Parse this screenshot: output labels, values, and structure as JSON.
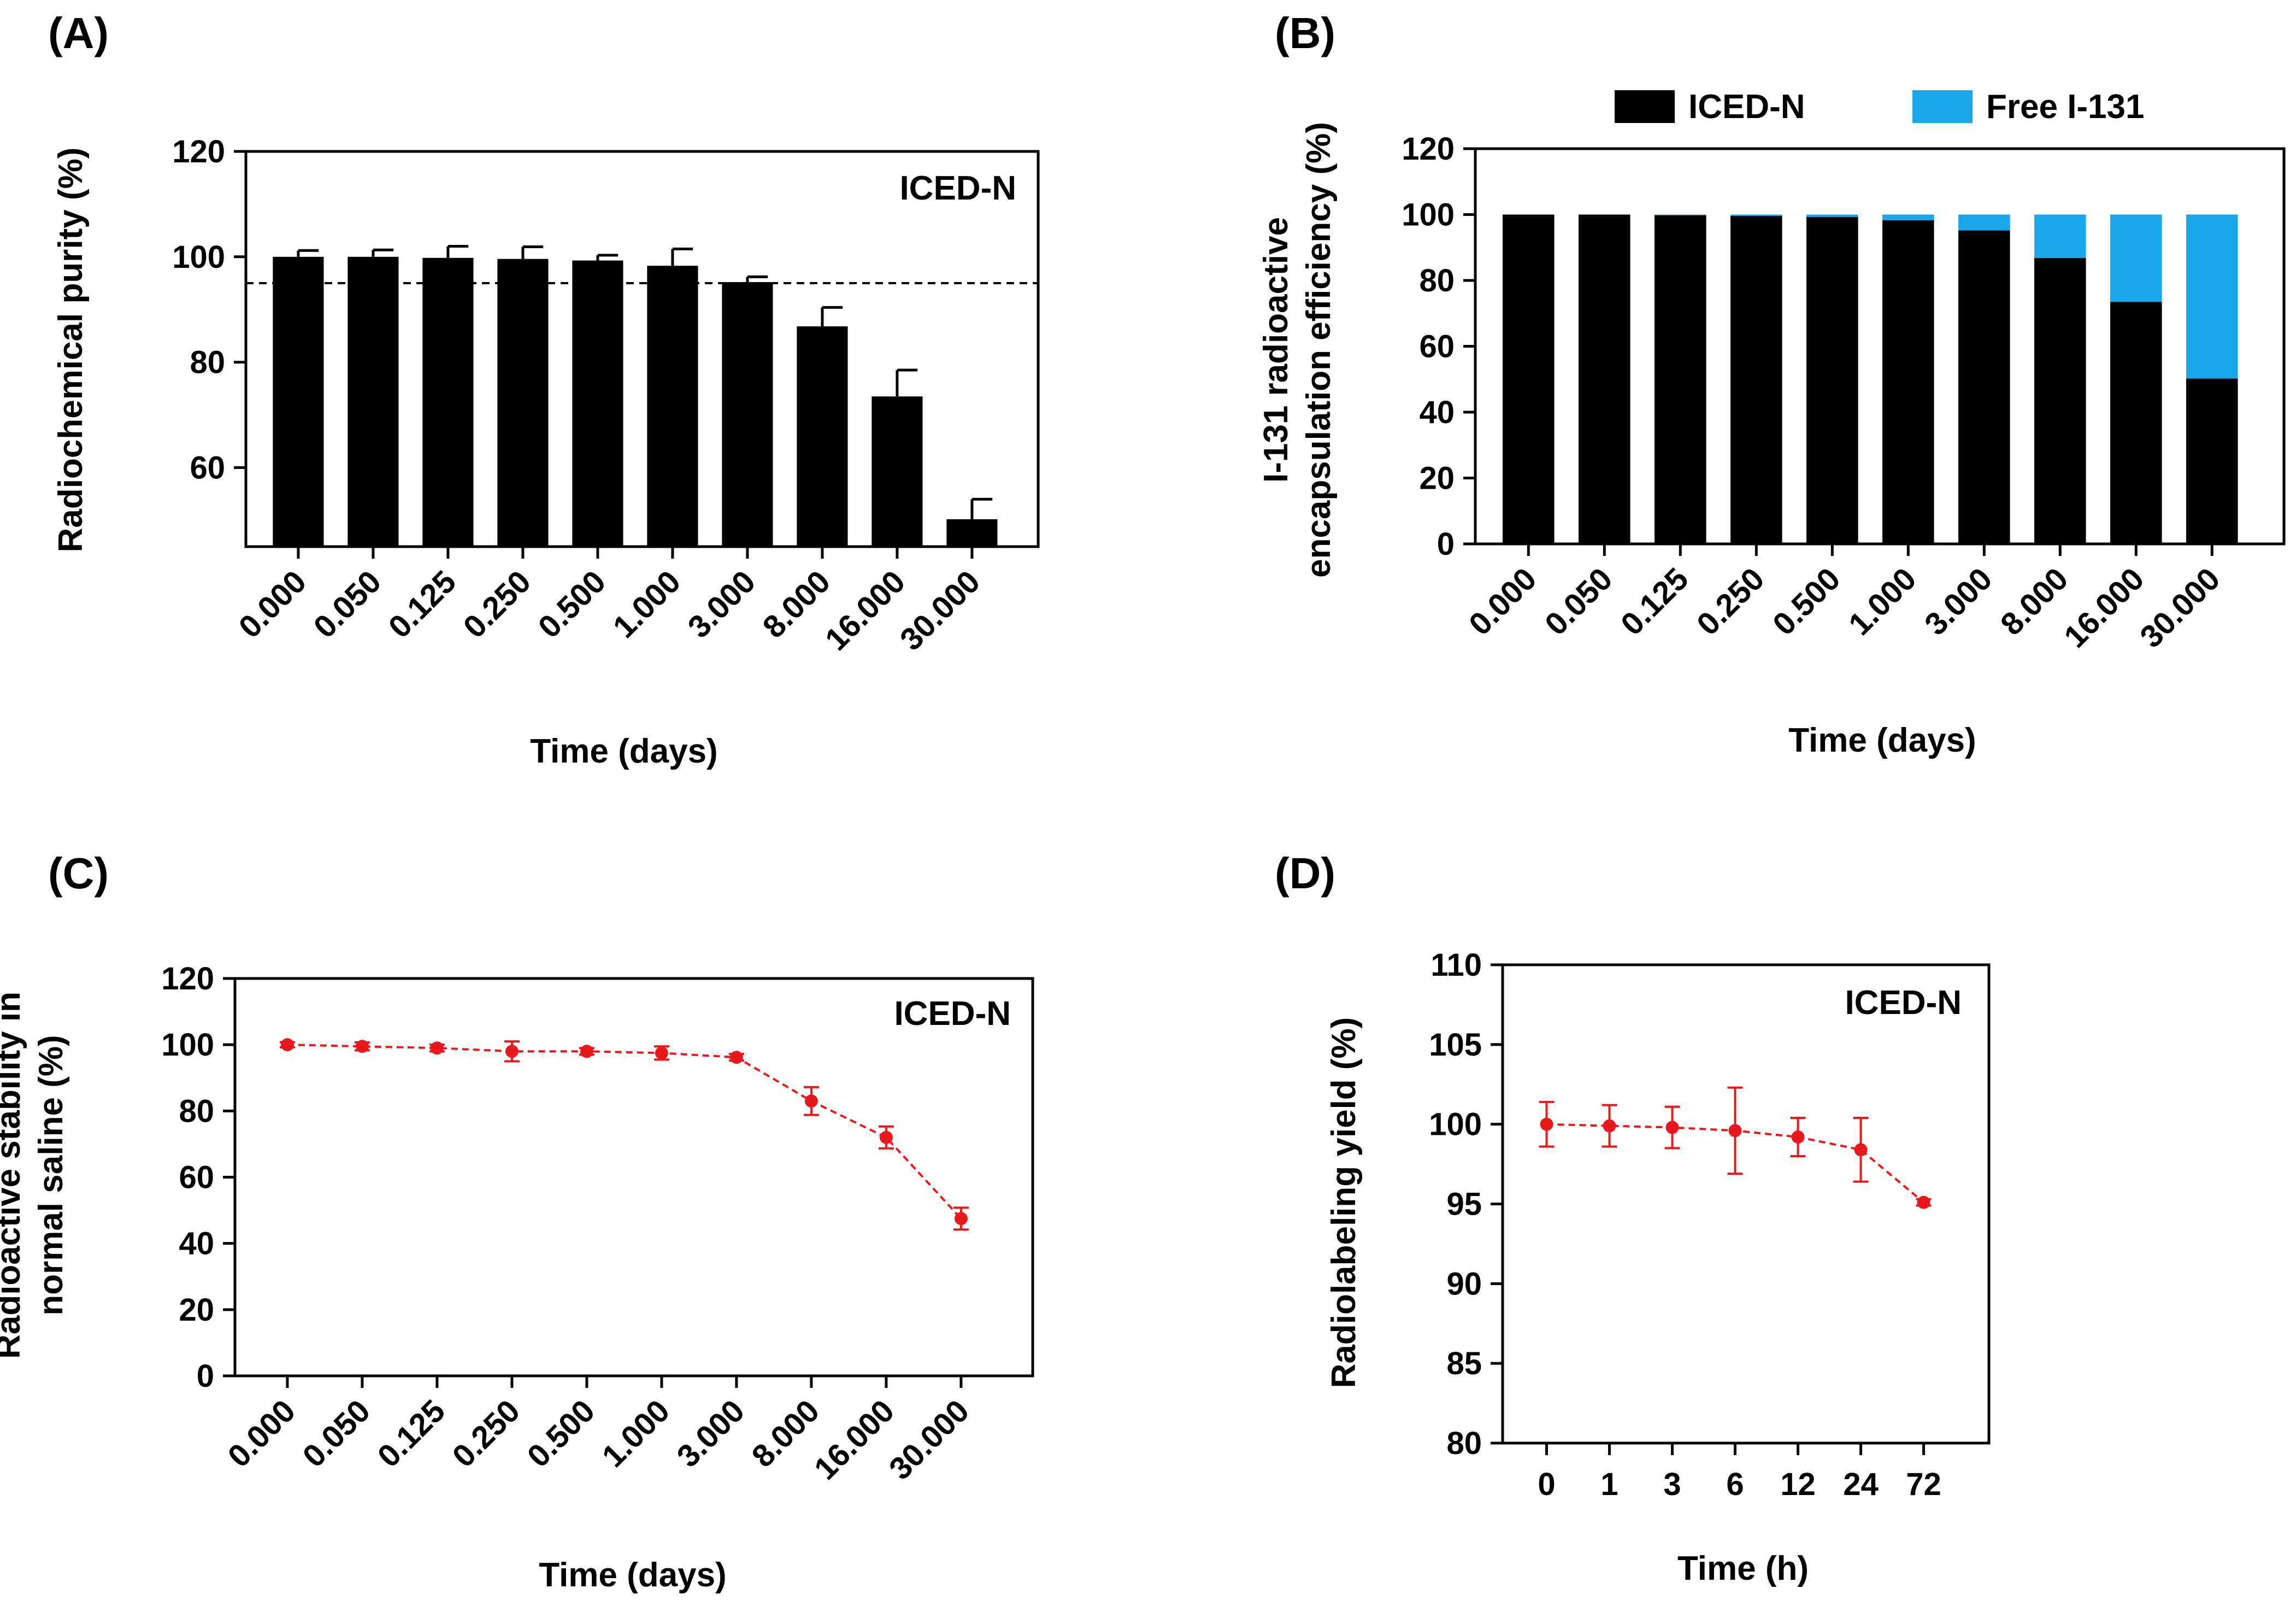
{
  "figure": {
    "panels": [
      "(A)",
      "(B)",
      "(C)",
      "(D)"
    ]
  },
  "colors": {
    "bar_black": "#000000",
    "free_blue": "#1aa6ea",
    "line_red": "#e8191d",
    "axis": "#000000"
  },
  "chart_data": [
    {
      "panel": "(A)",
      "type": "bar",
      "title": "",
      "inset_label": "ICED-N",
      "xlabel": "Time (days)",
      "ylabel": "Radiochemical purity (%)",
      "categories": [
        "0.000",
        "0.050",
        "0.125",
        "0.250",
        "0.500",
        "1.000",
        "3.000",
        "8.000",
        "16.000",
        "30.000"
      ],
      "values": [
        100,
        100,
        99.8,
        99.6,
        99.3,
        98.3,
        95.2,
        86.8,
        73.5,
        50.2
      ],
      "errors": [
        1.2,
        1.3,
        2.2,
        2.3,
        1.0,
        3.2,
        1.0,
        3.6,
        5.0,
        3.8
      ],
      "reference_line": 95,
      "ylim": [
        45,
        120
      ],
      "yticks": [
        60,
        80,
        100,
        120
      ],
      "ytick_labels": [
        "60",
        "80",
        "100",
        "120"
      ]
    },
    {
      "panel": "(B)",
      "type": "bar",
      "stacked": true,
      "title": "",
      "xlabel": "Time (days)",
      "ylabel": [
        "I-131 radioactive",
        "encapsulation efficiency (%)"
      ],
      "categories": [
        "0.000",
        "0.050",
        "0.125",
        "0.250",
        "0.500",
        "1.000",
        "3.000",
        "8.000",
        "16.000",
        "30.000"
      ],
      "series": [
        {
          "name": "ICED-N",
          "values": [
            100,
            100,
            99.8,
            99.6,
            99.3,
            98.3,
            95.2,
            86.8,
            73.5,
            50.2
          ]
        },
        {
          "name": "Free I-131",
          "values": [
            0,
            0,
            0.2,
            0.4,
            0.7,
            1.7,
            4.8,
            13.2,
            26.5,
            49.8
          ]
        }
      ],
      "legend": [
        "ICED-N",
        "Free I-131"
      ],
      "legend_position": "top",
      "ylim": [
        0,
        120
      ],
      "yticks": [
        0,
        20,
        40,
        60,
        80,
        100,
        120
      ],
      "ytick_labels": [
        "0",
        "20",
        "40",
        "60",
        "80",
        "100",
        "120"
      ]
    },
    {
      "panel": "(C)",
      "type": "line",
      "title": "",
      "inset_label": "ICED-N",
      "xlabel": "Time (days)",
      "ylabel": [
        "Radioactive stability in",
        "normal saline (%)"
      ],
      "categories": [
        "0.000",
        "0.050",
        "0.125",
        "0.250",
        "0.500",
        "1.000",
        "3.000",
        "8.000",
        "16.000",
        "30.000"
      ],
      "values": [
        100,
        99.5,
        99,
        98,
        98,
        97.5,
        96.2,
        83,
        72,
        47.5
      ],
      "errors": [
        0.8,
        1.2,
        1,
        3,
        1,
        2,
        1,
        4.2,
        3.3,
        3.3
      ],
      "ylim": [
        0,
        120
      ],
      "yticks": [
        0,
        20,
        40,
        60,
        80,
        100,
        120
      ],
      "ytick_labels": [
        "0",
        "20",
        "40",
        "60",
        "80",
        "100",
        "120"
      ]
    },
    {
      "panel": "(D)",
      "type": "line",
      "title": "",
      "inset_label": "ICED-N",
      "xlabel": "Time (h)",
      "ylabel": "Radiolabeling yield (%)",
      "categories": [
        "0",
        "1",
        "3",
        "6",
        "12",
        "24",
        "72"
      ],
      "values": [
        100,
        99.9,
        99.8,
        99.6,
        99.2,
        98.4,
        95.1
      ],
      "errors": [
        1.4,
        1.3,
        1.3,
        2.7,
        1.2,
        2.0,
        0.2
      ],
      "ylim": [
        80,
        110
      ],
      "yticks": [
        80,
        85,
        90,
        95,
        100,
        105,
        110
      ],
      "ytick_labels": [
        "80",
        "85",
        "90",
        "95",
        "100",
        "105",
        "110"
      ]
    }
  ]
}
